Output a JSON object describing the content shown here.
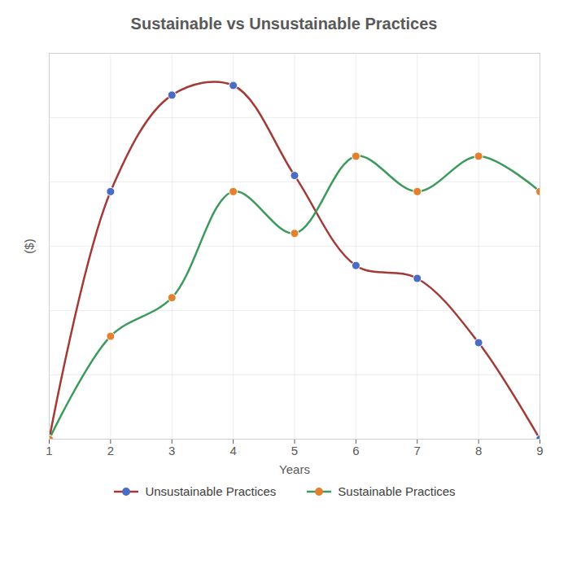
{
  "chart_data": {
    "type": "line",
    "title": "Sustainable vs Unsustainable Practices",
    "x_label": "Years",
    "y_label": "($)",
    "x": [
      1,
      2,
      3,
      4,
      5,
      6,
      7,
      8,
      9
    ],
    "series": [
      {
        "name": "Unsustainable Practices",
        "color": "#a33a36",
        "marker": "circle",
        "values": [
          0,
          3.85,
          5.35,
          5.5,
          4.1,
          2.7,
          2.5,
          1.5,
          0
        ]
      },
      {
        "name": "Sustainable Practices",
        "color": "#3c9a5c",
        "marker": "circle",
        "values": [
          0,
          1.6,
          2.2,
          3.85,
          3.2,
          4.4,
          3.85,
          4.4,
          3.85
        ]
      }
    ],
    "xlim": [
      1,
      9
    ],
    "xticks": [
      1,
      2,
      3,
      4,
      5,
      6,
      7,
      8,
      9
    ],
    "ylim": [
      0,
      6
    ],
    "yticks": [
      0,
      1,
      2,
      3,
      4,
      5,
      6
    ],
    "grid": true,
    "legend": "bottom",
    "tick_labels": "x"
  }
}
